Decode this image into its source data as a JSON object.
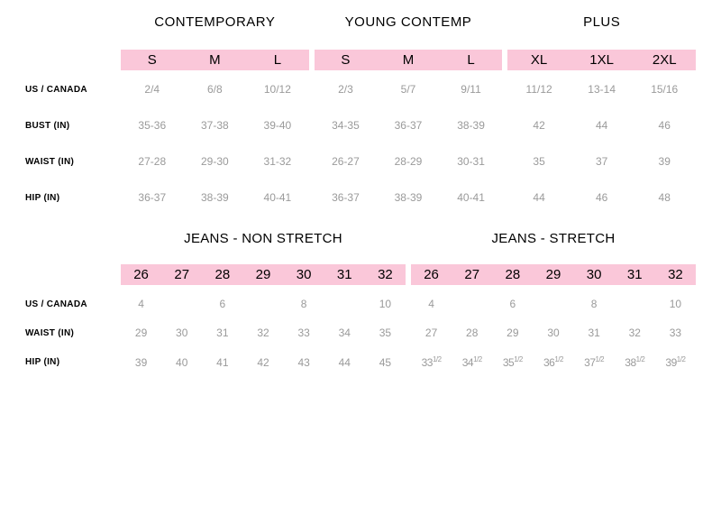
{
  "colors": {
    "header_bg": "#fac7d9",
    "page_bg": "#ffffff",
    "value_text": "#9a9a9a",
    "label_text": "#000000"
  },
  "typography": {
    "group_header_fontsize": 15,
    "size_header_fontsize": 15,
    "row_label_fontsize": 10,
    "value_fontsize": 12,
    "font_family": "Arial"
  },
  "top": {
    "groups": [
      {
        "title": "CONTEMPORARY",
        "sizes": [
          "S",
          "M",
          "L"
        ]
      },
      {
        "title": "YOUNG CONTEMP",
        "sizes": [
          "S",
          "M",
          "L"
        ]
      },
      {
        "title": "PLUS",
        "sizes": [
          "XL",
          "1XL",
          "2XL"
        ]
      }
    ],
    "rows": [
      {
        "label": "US / CANADA",
        "values": [
          [
            "2/4",
            "6/8",
            "10/12"
          ],
          [
            "2/3",
            "5/7",
            "9/11"
          ],
          [
            "11/12",
            "13-14",
            "15/16"
          ]
        ]
      },
      {
        "label": "BUST (IN)",
        "values": [
          [
            "35-36",
            "37-38",
            "39-40"
          ],
          [
            "34-35",
            "36-37",
            "38-39"
          ],
          [
            "42",
            "44",
            "46"
          ]
        ]
      },
      {
        "label": "WAIST (IN)",
        "values": [
          [
            "27-28",
            "29-30",
            "31-32"
          ],
          [
            "26-27",
            "28-29",
            "30-31"
          ],
          [
            "35",
            "37",
            "39"
          ]
        ]
      },
      {
        "label": "HIP (IN)",
        "values": [
          [
            "36-37",
            "38-39",
            "40-41"
          ],
          [
            "36-37",
            "38-39",
            "40-41"
          ],
          [
            "44",
            "46",
            "48"
          ]
        ]
      }
    ]
  },
  "jeans": {
    "groups": [
      {
        "title": "JEANS - NON STRETCH",
        "sizes": [
          "26",
          "27",
          "28",
          "29",
          "30",
          "31",
          "32"
        ]
      },
      {
        "title": "JEANS - STRETCH",
        "sizes": [
          "26",
          "27",
          "28",
          "29",
          "30",
          "31",
          "32"
        ]
      }
    ],
    "rows": [
      {
        "label": "US / CANADA",
        "values": [
          [
            "4",
            "",
            "6",
            "",
            "8",
            "",
            "10"
          ],
          [
            "4",
            "",
            "6",
            "",
            "8",
            "",
            "10"
          ]
        ]
      },
      {
        "label": "WAIST (IN)",
        "values": [
          [
            "29",
            "30",
            "31",
            "32",
            "33",
            "34",
            "35"
          ],
          [
            "27",
            "28",
            "29",
            "30",
            "31",
            "32",
            "33"
          ]
        ]
      },
      {
        "label": "HIP (IN)",
        "values": [
          [
            "39",
            "40",
            "41",
            "42",
            "43",
            "44",
            "45"
          ],
          [
            "33½",
            "34½",
            "35½",
            "36½",
            "37½",
            "38½",
            "39½"
          ]
        ]
      }
    ]
  }
}
